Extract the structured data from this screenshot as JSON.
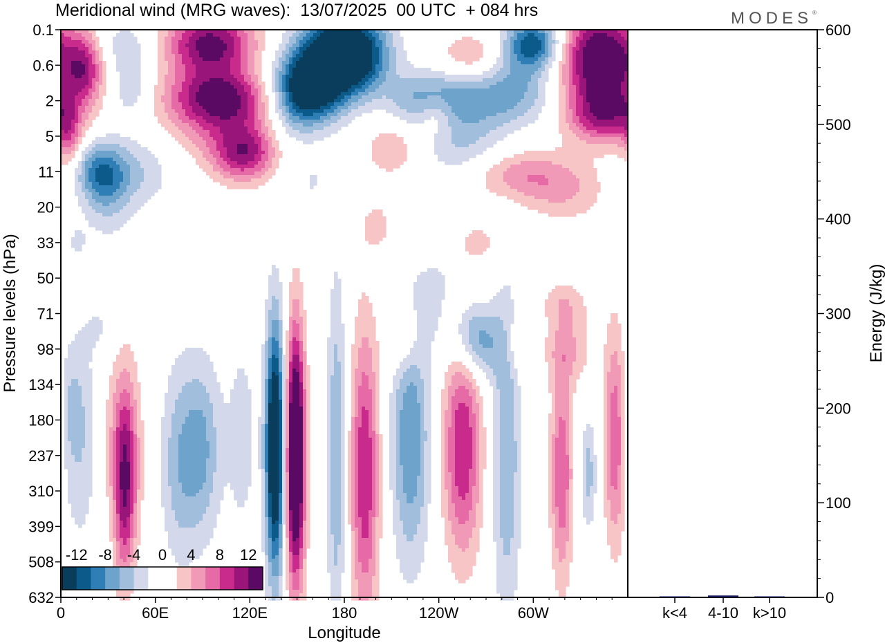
{
  "title": "Meridional wind (MRG waves):  13/07/2025  00 UTC  + 084 hrs",
  "brand": "MODES",
  "brand_mark": "®",
  "colors": {
    "neg": [
      "#0a3d5c",
      "#0b5a8a",
      "#2f7fb6",
      "#6ea4cc",
      "#a2bedd",
      "#d3d8ea"
    ],
    "neutral": "#ffffff",
    "pos": [
      "#f7c5c5",
      "#f19ab7",
      "#e56aa6",
      "#c92b8c",
      "#99157a",
      "#5a0a62"
    ],
    "bar": "#1a1a5e"
  },
  "chart_data": [
    {
      "type": "heatmap",
      "title": "Meridional wind (MRG waves):  13/07/2025  00 UTC  + 084 hrs",
      "xlabel": "Longitude",
      "ylabel": "Pressure levels (hPa)",
      "x_ticks": [
        "0",
        "60E",
        "120E",
        "180",
        "120W",
        "60W"
      ],
      "y_ticks": [
        "0.1",
        "0.6",
        "2",
        "5",
        "11",
        "20",
        "33",
        "50",
        "71",
        "98",
        "134",
        "180",
        "237",
        "310",
        "399",
        "508",
        "632"
      ],
      "colorbar_labels": [
        "-12",
        "-8",
        "-4",
        "0",
        "4",
        "8",
        "12"
      ],
      "blobs": [
        {
          "lon": 15,
          "lev": 1.1,
          "w": 12,
          "h": 1.0,
          "v": 9
        },
        {
          "lon": 5,
          "lev": 3.0,
          "w": 8,
          "h": 0.9,
          "v": 6
        },
        {
          "lon": 40,
          "lev": 0.4,
          "w": 20,
          "h": 0.7,
          "v": -3
        },
        {
          "lon": 45,
          "lev": 1.6,
          "w": 12,
          "h": 0.9,
          "v": -4
        },
        {
          "lon": 45,
          "lev": 4.0,
          "w": 25,
          "h": 1.0,
          "v": -4
        },
        {
          "lon": 95,
          "lev": 0.4,
          "w": 28,
          "h": 0.9,
          "v": 13
        },
        {
          "lon": 100,
          "lev": 1.9,
          "w": 32,
          "h": 0.8,
          "v": 12
        },
        {
          "lon": 110,
          "lev": 2.8,
          "w": 40,
          "h": 0.9,
          "v": 5
        },
        {
          "lon": 115,
          "lev": 3.6,
          "w": 20,
          "h": 0.8,
          "v": 5
        },
        {
          "lon": 180,
          "lev": 0.2,
          "w": 25,
          "h": 0.8,
          "v": -12
        },
        {
          "lon": 165,
          "lev": 1.3,
          "w": 25,
          "h": 1.0,
          "v": -13
        },
        {
          "lon": 155,
          "lev": 1.9,
          "w": 20,
          "h": 1.0,
          "v": -9
        },
        {
          "lon": 190,
          "lev": 1.0,
          "w": 20,
          "h": 0.8,
          "v": -8
        },
        {
          "lon": 140,
          "lev": 3.0,
          "w": 18,
          "h": 1.2,
          "v": -3
        },
        {
          "lon": 210,
          "lev": 3.3,
          "w": 16,
          "h": 0.8,
          "v": 4
        },
        {
          "lon": 232,
          "lev": 2.0,
          "w": 25,
          "h": 0.8,
          "v": -6
        },
        {
          "lon": 238,
          "lev": 2.4,
          "w": 12,
          "h": 0.6,
          "v": 5
        },
        {
          "lon": 260,
          "lev": 0.7,
          "w": 20,
          "h": 0.6,
          "v": 4
        },
        {
          "lon": 275,
          "lev": 2.0,
          "w": 40,
          "h": 0.8,
          "v": -6
        },
        {
          "lon": 255,
          "lev": 3.2,
          "w": 25,
          "h": 0.9,
          "v": -4
        },
        {
          "lon": 300,
          "lev": 0.4,
          "w": 18,
          "h": 0.7,
          "v": -12
        },
        {
          "lon": 290,
          "lev": 1.3,
          "w": 20,
          "h": 0.7,
          "v": -3
        },
        {
          "lon": 343,
          "lev": 0.8,
          "w": 25,
          "h": 1.3,
          "v": 16
        },
        {
          "lon": 345,
          "lev": 2.4,
          "w": 25,
          "h": 0.8,
          "v": 10
        },
        {
          "lon": 25,
          "lev": 4.0,
          "w": 15,
          "h": 0.8,
          "v": -8
        },
        {
          "lon": 30,
          "lev": 5.0,
          "w": 15,
          "h": 1.0,
          "v": -3
        },
        {
          "lon": 10,
          "lev": 6.0,
          "w": 8,
          "h": 0.6,
          "v": -2
        },
        {
          "lon": 120,
          "lev": 3.5,
          "w": 22,
          "h": 0.7,
          "v": 5
        },
        {
          "lon": 160,
          "lev": 4.3,
          "w": 8,
          "h": 0.7,
          "v": -2
        },
        {
          "lon": 215,
          "lev": 5.4,
          "w": 10,
          "h": 0.6,
          "v": -2
        },
        {
          "lon": 205,
          "lev": 5.5,
          "w": 15,
          "h": 0.8,
          "v": 3
        },
        {
          "lon": 290,
          "lev": 4.1,
          "w": 28,
          "h": 0.7,
          "v": 5
        },
        {
          "lon": 320,
          "lev": 4.5,
          "w": 25,
          "h": 0.9,
          "v": 4
        },
        {
          "lon": 265,
          "lev": 6.0,
          "w": 12,
          "h": 0.5,
          "v": 3
        },
        {
          "lon": 240,
          "lev": 7.1,
          "w": 12,
          "h": 0.6,
          "v": -2
        },
        {
          "lon": 320,
          "lev": 7.7,
          "w": 15,
          "h": 0.6,
          "v": 3
        },
        {
          "lon": 236,
          "lev": 8.0,
          "w": 10,
          "h": 1.0,
          "v": -2
        },
        {
          "lon": 218,
          "lev": 8.7,
          "w": 10,
          "h": 1.0,
          "v": 4
        },
        {
          "lon": 260,
          "lev": 8.6,
          "w": 13,
          "h": 1.0,
          "v": -5
        },
        {
          "lon": 270,
          "lev": 8.9,
          "w": 15,
          "h": 1.0,
          "v": -4
        },
        {
          "lon": 290,
          "lev": 8.9,
          "w": 10,
          "h": 0.8,
          "v": 3
        },
        {
          "lon": 322,
          "lev": 9.0,
          "w": 15,
          "h": 1.0,
          "v": 4
        },
        {
          "lon": 25,
          "lev": 8.4,
          "w": 10,
          "h": 0.8,
          "v": -2
        },
        {
          "lon": 12,
          "lev": 11.5,
          "w": 12,
          "h": 3.0,
          "v": -4
        },
        {
          "lon": 38,
          "lev": 11.5,
          "w": 12,
          "h": 2.5,
          "v": 4
        },
        {
          "lon": 42,
          "lev": 12.5,
          "w": 8,
          "h": 2.5,
          "v": 6
        },
        {
          "lon": 40,
          "lev": 13.5,
          "w": 6,
          "h": 2.5,
          "v": 5
        },
        {
          "lon": 75,
          "lev": 12.2,
          "w": 12,
          "h": 2.8,
          "v": -5
        },
        {
          "lon": 90,
          "lev": 11.8,
          "w": 12,
          "h": 2.5,
          "v": -6
        },
        {
          "lon": 115,
          "lev": 11.5,
          "w": 10,
          "h": 3.0,
          "v": -3
        },
        {
          "lon": 136,
          "lev": 11.8,
          "w": 6,
          "h": 3.5,
          "v": -18
        },
        {
          "lon": 149,
          "lev": 12.0,
          "w": 6,
          "h": 3.5,
          "v": 20
        },
        {
          "lon": 175,
          "lev": 12.0,
          "w": 6,
          "h": 5.0,
          "v": -6
        },
        {
          "lon": 193,
          "lev": 12.5,
          "w": 9,
          "h": 4.0,
          "v": 10
        },
        {
          "lon": 222,
          "lev": 11.5,
          "w": 12,
          "h": 3.5,
          "v": -8
        },
        {
          "lon": 255,
          "lev": 11.8,
          "w": 12,
          "h": 3.0,
          "v": 10
        },
        {
          "lon": 283,
          "lev": 12.0,
          "w": 9,
          "h": 4.5,
          "v": -6
        },
        {
          "lon": 318,
          "lev": 12.5,
          "w": 7,
          "h": 3.0,
          "v": 8
        },
        {
          "lon": 335,
          "lev": 12.5,
          "w": 5,
          "h": 1.5,
          "v": -5
        },
        {
          "lon": 352,
          "lev": 11.5,
          "w": 7,
          "h": 3.0,
          "v": 8
        },
        {
          "lon": 5,
          "lev": 10.5,
          "w": 8,
          "h": 1.5,
          "v": -2
        }
      ]
    },
    {
      "type": "bar",
      "ylabel": "Energy (J/kg)",
      "categories": [
        "k<4",
        "4-10",
        "k>10"
      ],
      "values": [
        0.5,
        2,
        0.5
      ],
      "ylim": [
        0,
        600
      ],
      "y_ticks": [
        "0",
        "100",
        "200",
        "300",
        "400",
        "500",
        "600"
      ]
    }
  ]
}
